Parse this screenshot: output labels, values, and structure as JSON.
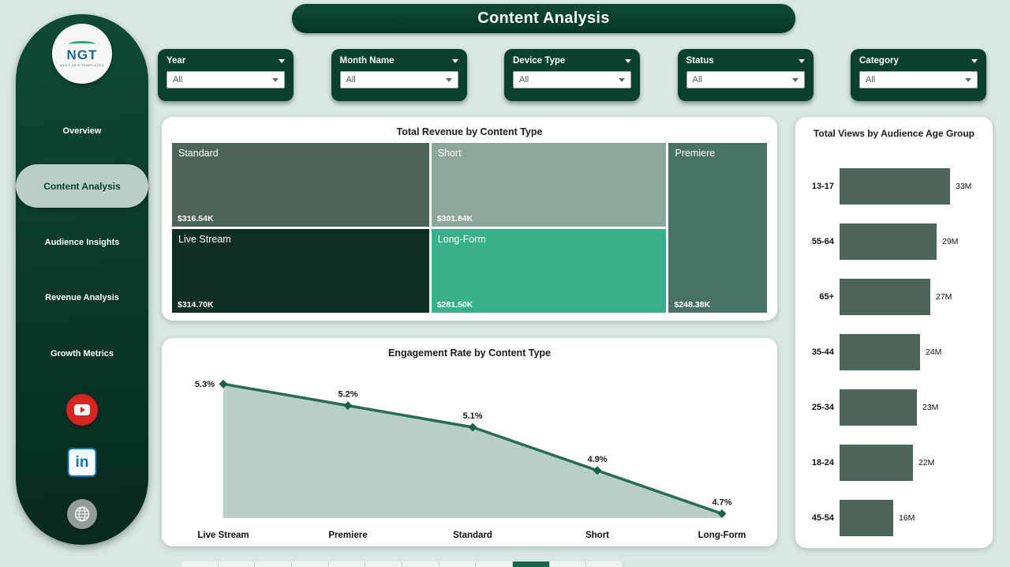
{
  "app": {
    "title": "Content Analysis"
  },
  "sidebar": {
    "logo": {
      "text": "NGT",
      "subtext": "NEXT GEN TEMPLATES"
    },
    "items": [
      {
        "label": "Overview"
      },
      {
        "label": "Content Analysis"
      },
      {
        "label": "Audience Insights"
      },
      {
        "label": "Revenue Analysis"
      },
      {
        "label": "Growth Metrics"
      }
    ],
    "active_item": "Content Analysis",
    "social": [
      {
        "name": "youtube"
      },
      {
        "name": "linkedin",
        "label": "in"
      },
      {
        "name": "website"
      }
    ]
  },
  "filters": [
    {
      "label": "Year",
      "value": "All"
    },
    {
      "label": "Month Name",
      "value": "All"
    },
    {
      "label": "Device Type",
      "value": "All"
    },
    {
      "label": "Status",
      "value": "All"
    },
    {
      "label": "Category",
      "value": "All"
    }
  ],
  "colors": {
    "dark_green": "#09402f",
    "background": "#d7e9e2",
    "bar": "#4d6458",
    "line": "#2a6b54",
    "area_fill": "#b7cfc4",
    "marker": "#1e5f4a",
    "active_pill": "#b9cfc5"
  },
  "chart_data": [
    {
      "type": "treemap",
      "title": "Total Revenue by Content Type",
      "items": [
        {
          "label": "Standard",
          "value_label": "$316.54K",
          "value": 316.54,
          "color": "#4d6459"
        },
        {
          "label": "Short",
          "value_label": "$301.84K",
          "value": 301.84,
          "color": "#8ea79b"
        },
        {
          "label": "Premiere",
          "value_label": "$248.38K",
          "value": 248.38,
          "color": "#4a7263"
        },
        {
          "label": "Live Stream",
          "value_label": "$314.70K",
          "value": 314.7,
          "color": "#0e2f22"
        },
        {
          "label": "Long-Form",
          "value_label": "$281.50K",
          "value": 281.5,
          "color": "#39b188"
        }
      ]
    },
    {
      "type": "line",
      "title": "Engagement Rate by Content Type",
      "categories": [
        "Live Stream",
        "Premiere",
        "Standard",
        "Short",
        "Long-Form"
      ],
      "values": [
        5.3,
        5.2,
        5.1,
        4.9,
        4.7
      ],
      "labels": [
        "5.3%",
        "5.2%",
        "5.1%",
        "4.9%",
        "4.7%"
      ],
      "ylim": [
        4.68,
        5.33
      ],
      "grid": false,
      "legend": "none"
    },
    {
      "type": "bar",
      "orientation": "horizontal",
      "title": "Total Views by Audience Age Group",
      "categories": [
        "13-17",
        "55-64",
        "65+",
        "35-44",
        "25-34",
        "18-24",
        "45-54"
      ],
      "values": [
        33,
        29,
        27,
        24,
        23,
        22,
        16
      ],
      "labels": [
        "33M",
        "29M",
        "27M",
        "24M",
        "23M",
        "22M",
        "16M"
      ]
    }
  ],
  "page_navigator": {
    "pages": 12,
    "active_index": 9
  }
}
